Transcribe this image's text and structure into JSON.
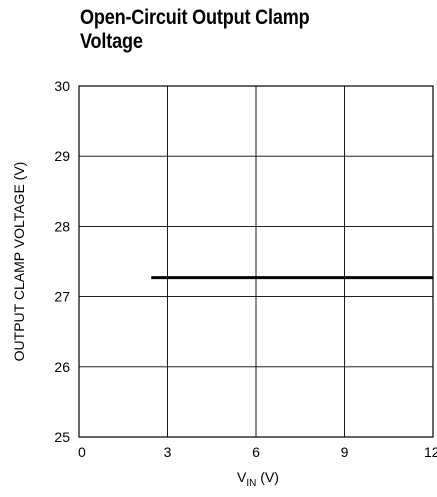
{
  "chart_data": {
    "type": "line",
    "title_line1": "Open-Circuit Output Clamp",
    "title_line2": "Voltage",
    "xlabel_main": "V",
    "xlabel_sub": "IN",
    "xlabel_unit": " (V)",
    "ylabel": "OUTPUT CLAMP VOLTAGE (V)",
    "xlim": [
      0,
      12
    ],
    "ylim": [
      25,
      30
    ],
    "x_ticks": [
      0,
      3,
      6,
      9,
      12
    ],
    "x_tick_labels": [
      "0",
      "3",
      "6",
      "9",
      "12"
    ],
    "y_ticks": [
      25,
      26,
      27,
      28,
      29,
      30
    ],
    "y_tick_labels": [
      "25",
      "26",
      "27",
      "28",
      "29",
      "30"
    ],
    "grid": true,
    "series": [
      {
        "x": [
          2.45,
          12
        ],
        "y": [
          27.27,
          27.27
        ]
      }
    ]
  }
}
